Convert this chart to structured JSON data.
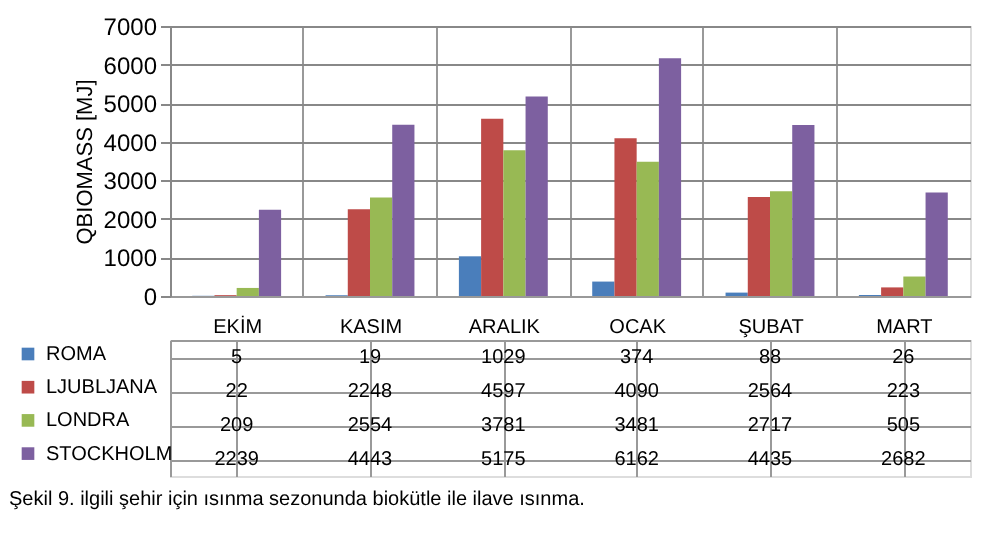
{
  "chart_data": {
    "type": "bar",
    "ylabel": "QBIOMASS [MJ]",
    "categories": [
      "EKİM",
      "KASIM",
      "ARALIK",
      "OCAK",
      "ŞUBAT",
      "MART"
    ],
    "series": [
      {
        "name": "ROMA",
        "color": "#4a7ebb",
        "values": [
          5,
          19,
          1029,
          374,
          88,
          26
        ]
      },
      {
        "name": "LJUBLJANA",
        "color": "#be4b48",
        "values": [
          22,
          2248,
          4597,
          4090,
          2564,
          223
        ]
      },
      {
        "name": "LONDRA",
        "color": "#98b954",
        "values": [
          209,
          2554,
          3781,
          3481,
          2717,
          505
        ]
      },
      {
        "name": "STOCKHOLM",
        "color": "#7d60a0",
        "values": [
          2239,
          4443,
          5175,
          6162,
          4435,
          2682
        ]
      }
    ],
    "ylim": [
      0,
      7000
    ],
    "yticks": [
      0,
      1000,
      2000,
      3000,
      4000,
      5000,
      6000,
      7000
    ],
    "grid": "y",
    "data_labels": true,
    "legend": "bottom left",
    "annotations": [
      "Şekil 9. ilgili şehir için ısınma sezonunda biokütle ile ilave ısınma."
    ]
  }
}
